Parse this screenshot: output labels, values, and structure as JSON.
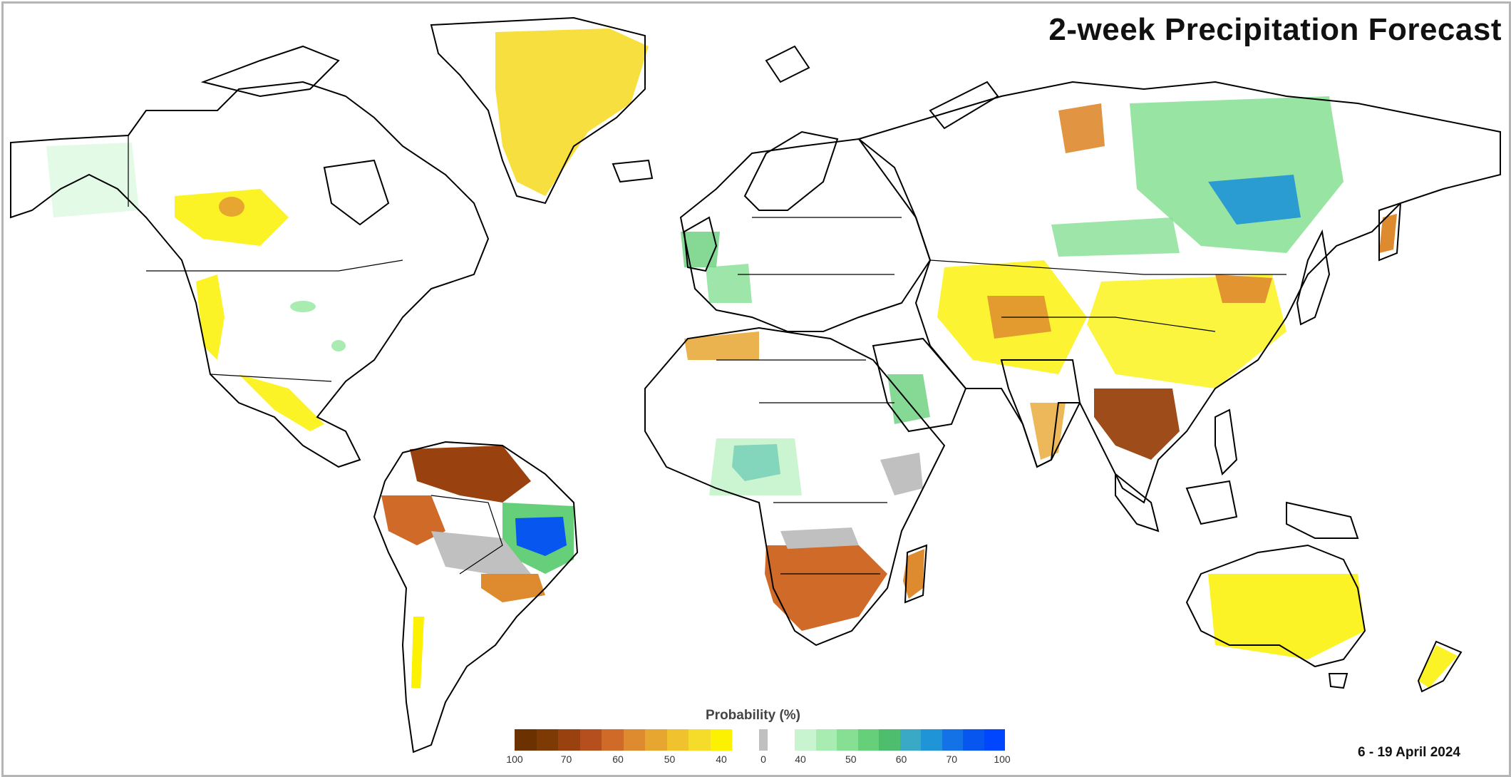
{
  "title": "2-week Precipitation Forecast",
  "date_range": "6 - 19 April 2024",
  "legend": {
    "title": "Probability (%)",
    "dry_colors": [
      "#6b3200",
      "#7e3a05",
      "#9a420f",
      "#b5501e",
      "#cf6a28",
      "#de8a2e",
      "#e7a630",
      "#f0c22e",
      "#f6dc2a",
      "#fbf100"
    ],
    "neutral_color": "#c0c0c0",
    "wet_colors": [
      "#c8f5cf",
      "#a8ecb1",
      "#86df93",
      "#66cf7a",
      "#4fbd6e",
      "#3aa9c6",
      "#1f94d6",
      "#1272e6",
      "#0756f0",
      "#0046ff"
    ],
    "dry_tick_labels": [
      "100",
      "70",
      "60",
      "50",
      "40"
    ],
    "neutral_tick_label": "0",
    "wet_tick_labels": [
      "40",
      "50",
      "60",
      "70",
      "100"
    ]
  },
  "map": {
    "description_regions": [
      {
        "name": "Northern South America",
        "category": "dry",
        "level": "70-100"
      },
      {
        "name": "Eastern Brazil",
        "category": "wet",
        "level": "70-100"
      },
      {
        "name": "Southern Africa",
        "category": "dry",
        "level": "50-60"
      },
      {
        "name": "Madagascar",
        "category": "dry",
        "level": "50"
      },
      {
        "name": "Mainland Southeast Asia",
        "category": "dry",
        "level": "60-70"
      },
      {
        "name": "Central Siberia",
        "category": "wet",
        "level": "50-70"
      },
      {
        "name": "West Africa (Nigeria)",
        "category": "wet",
        "level": "50-60"
      },
      {
        "name": "Greenland",
        "category": "dry",
        "level": "40"
      },
      {
        "name": "Australia",
        "category": "dry",
        "level": "40"
      }
    ],
    "colors": {
      "ocean": "#ffffff",
      "land": "#ffffff",
      "border": "#000000"
    }
  }
}
